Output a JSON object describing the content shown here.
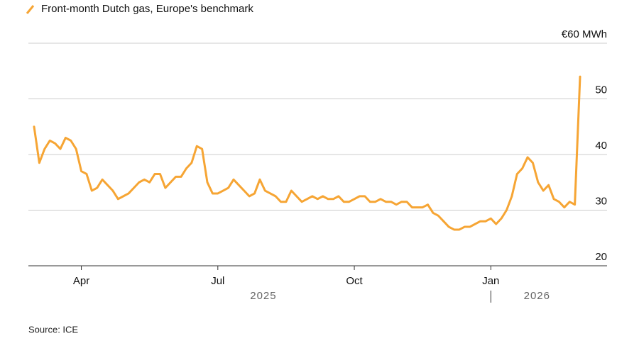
{
  "chart_data": {
    "type": "line",
    "series": [
      {
        "name": "Front-month Dutch gas, Europe's benchmark",
        "color": "#f6a534",
        "values": [
          45,
          38.5,
          41,
          42.5,
          42,
          41,
          43,
          42.5,
          41,
          37,
          36.5,
          33.5,
          34,
          35.5,
          34.5,
          33.5,
          32,
          32.5,
          33,
          34,
          35,
          35.5,
          35,
          36.5,
          36.5,
          34,
          35,
          36,
          36,
          37.5,
          38.5,
          41.5,
          41,
          35,
          33,
          33,
          33.5,
          34,
          35.5,
          34.5,
          33.5,
          32.5,
          33,
          35.5,
          33.5,
          33,
          32.5,
          31.5,
          31.5,
          33.5,
          32.5,
          31.5,
          32,
          32.5,
          32,
          32.5,
          32,
          32,
          32.5,
          31.5,
          31.5,
          32,
          32.5,
          32.5,
          31.5,
          31.5,
          32,
          31.5,
          31.5,
          31,
          31.5,
          31.5,
          30.5,
          30.5,
          30.5,
          31,
          29.5,
          29,
          28,
          27,
          26.5,
          26.5,
          27,
          27,
          27.5,
          28,
          28,
          28.5,
          27.5,
          28.5,
          30,
          32.5,
          36.5,
          37.5,
          39.5,
          38.5,
          35,
          33.5,
          34.5,
          32,
          31.5,
          30.5,
          31.5,
          31,
          54
        ]
      }
    ],
    "categories": [
      null,
      null,
      null,
      null,
      null,
      null,
      null,
      null,
      null,
      "Apr",
      null,
      null,
      null,
      null,
      null,
      null,
      null,
      null,
      null,
      null,
      null,
      null,
      null,
      null,
      null,
      null,
      null,
      null,
      null,
      null,
      null,
      null,
      null,
      null,
      null,
      "Jul",
      null,
      null,
      null,
      null,
      null,
      null,
      null,
      null,
      null,
      null,
      null,
      null,
      null,
      null,
      null,
      null,
      null,
      null,
      null,
      null,
      null,
      null,
      null,
      null,
      null,
      "Oct",
      null,
      null,
      null,
      null,
      null,
      null,
      null,
      null,
      null,
      null,
      null,
      null,
      null,
      null,
      null,
      null,
      null,
      null,
      null,
      null,
      null,
      null,
      null,
      null,
      null,
      "Jan",
      null,
      null,
      null,
      null,
      null,
      null,
      null,
      null,
      null,
      null,
      null,
      null,
      null,
      null,
      null,
      null,
      null
    ],
    "x_years": [
      "2025",
      "2026"
    ],
    "ylim": [
      20,
      60
    ],
    "yticks": [
      20,
      30,
      40,
      50,
      {
        "value": 60,
        "label": "€60 MWh"
      }
    ],
    "grid": true,
    "source": "Source: ICE"
  }
}
